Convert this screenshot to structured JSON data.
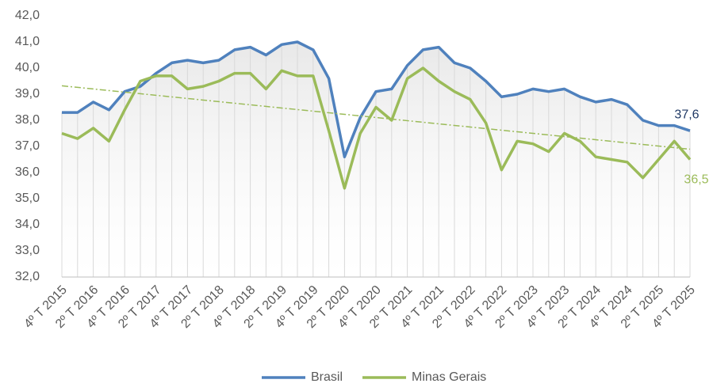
{
  "chart_data": {
    "type": "line",
    "categories": [
      "4º T 2015",
      null,
      "2º T 2016",
      null,
      "4º T 2016",
      null,
      "2º T 2017",
      null,
      "4º T 2017",
      null,
      "2º T 2018",
      null,
      "4º T 2018",
      null,
      "2º T 2019",
      null,
      "4º T 2019",
      null,
      "2º T 2020",
      null,
      "4º T 2020",
      null,
      "2º T 2021",
      null,
      "4º T 2021",
      null,
      "2º T 2022",
      null,
      "4º T 2022",
      null,
      "2º T 2023",
      null,
      "4º T 2023",
      null,
      "2º T 2024",
      null,
      "4º T 2024",
      null,
      "2º T 2025",
      null,
      "4º T 2025"
    ],
    "series": [
      {
        "name": "Brasil",
        "color": "#4f81bd",
        "values": [
          38.3,
          38.3,
          38.7,
          38.4,
          39.1,
          39.3,
          39.8,
          40.2,
          40.3,
          40.2,
          40.3,
          40.7,
          40.8,
          40.5,
          40.9,
          41.0,
          40.7,
          39.6,
          36.6,
          38.1,
          39.1,
          39.2,
          40.1,
          40.7,
          40.8,
          40.2,
          40.0,
          39.5,
          38.9,
          39.0,
          39.2,
          39.1,
          39.2,
          38.9,
          38.7,
          38.8,
          38.6,
          38.0,
          37.8,
          37.8,
          37.6
        ],
        "value_labels": [
          null,
          null,
          null,
          null,
          null,
          null,
          null,
          null,
          null,
          null,
          null,
          null,
          null,
          null,
          null,
          null,
          null,
          null,
          null,
          null,
          null,
          null,
          null,
          null,
          null,
          null,
          null,
          null,
          null,
          null,
          null,
          null,
          null,
          null,
          null,
          null,
          null,
          null,
          null,
          null,
          "37,6"
        ],
        "label_color": "#1f3864"
      },
      {
        "name": "Minas Gerais",
        "color": "#9bbb59",
        "values": [
          37.5,
          37.3,
          37.7,
          37.2,
          38.4,
          39.5,
          39.7,
          39.7,
          39.2,
          39.3,
          39.5,
          39.8,
          39.8,
          39.2,
          39.9,
          39.7,
          39.7,
          37.6,
          35.4,
          37.5,
          38.5,
          38.0,
          39.6,
          40.0,
          39.5,
          39.1,
          38.8,
          37.9,
          36.1,
          37.2,
          37.1,
          36.8,
          37.5,
          37.2,
          36.6,
          36.5,
          36.4,
          35.8,
          36.5,
          37.2,
          36.5
        ],
        "value_labels": [
          null,
          null,
          null,
          null,
          null,
          null,
          null,
          null,
          null,
          null,
          null,
          null,
          null,
          null,
          null,
          null,
          null,
          null,
          null,
          null,
          null,
          null,
          null,
          null,
          null,
          null,
          null,
          null,
          null,
          null,
          null,
          null,
          null,
          null,
          null,
          null,
          null,
          null,
          null,
          null,
          "36,5"
        ],
        "label_color": "#9bbb59",
        "trendline": true
      }
    ],
    "ylim": [
      32,
      42
    ],
    "yticks": [
      {
        "value": 32,
        "label": "32,0"
      },
      {
        "value": 33,
        "label": "33,0"
      },
      {
        "value": 34,
        "label": "34,0"
      },
      {
        "value": 35,
        "label": "35,0"
      },
      {
        "value": 36,
        "label": "36,0"
      },
      {
        "value": 37,
        "label": "37,0"
      },
      {
        "value": 38,
        "label": "38,0"
      },
      {
        "value": 39,
        "label": "39,0"
      },
      {
        "value": 40,
        "label": "40,0"
      },
      {
        "value": 41,
        "label": "41,0"
      },
      {
        "value": 42,
        "label": "42,0"
      }
    ],
    "legend": "bottom"
  }
}
